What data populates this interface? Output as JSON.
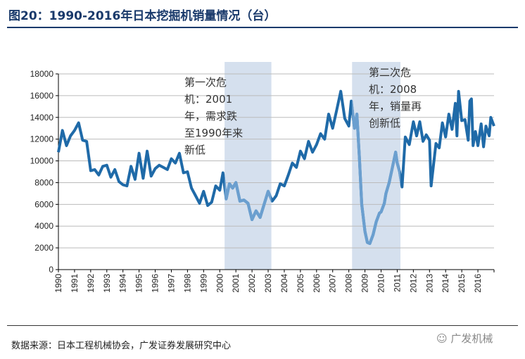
{
  "header": {
    "title": "图20：1990-2016年日本挖掘机销量情况（台）"
  },
  "footer": {
    "source": "数据来源：日本工程机械协会，广发证券发展研究中心",
    "brand": "广发机械",
    "brand_icon": "wechat-icon"
  },
  "chart_data": {
    "type": "line",
    "title": "",
    "xlabel": "",
    "ylabel": "",
    "ylim": [
      0,
      18000
    ],
    "xlim": [
      1990,
      2017
    ],
    "yticks": [
      "0",
      "2000",
      "4000",
      "6000",
      "8000",
      "10000",
      "12000",
      "14000",
      "16000",
      "18000"
    ],
    "xticks": [
      "1990",
      "1991",
      "1992",
      "1993",
      "1994",
      "1995",
      "1996",
      "1997",
      "1998",
      "1999",
      "2000",
      "2001",
      "2002",
      "2003",
      "2004",
      "2005",
      "2006",
      "2007",
      "2008",
      "2009",
      "2010",
      "2011",
      "2012",
      "2013",
      "2014",
      "2015",
      "2016"
    ],
    "grid": "horizontal",
    "legend": "none",
    "colors": {
      "line": "#1f6aa8",
      "line_highlight": "#6b9fcf",
      "shade": "#d5e0ee"
    },
    "shaded_periods": [
      {
        "from": 2000.3,
        "to": 2003.2,
        "label": [
          "第一次危",
          "机：2001",
          "年，需求跌",
          "至1990年来",
          "新低"
        ]
      },
      {
        "from": 2008.2,
        "to": 2011.2,
        "label": [
          "第二次危",
          "机：2008",
          "年，销量再",
          "创新低"
        ]
      }
    ],
    "x": [
      1990,
      1990.25,
      1990.5,
      1990.75,
      1991,
      1991.25,
      1991.5,
      1991.75,
      1992,
      1992.25,
      1992.5,
      1992.75,
      1993,
      1993.25,
      1993.5,
      1993.75,
      1994,
      1994.25,
      1994.5,
      1994.75,
      1995,
      1995.25,
      1995.5,
      1995.75,
      1996,
      1996.25,
      1996.5,
      1996.75,
      1997,
      1997.25,
      1997.5,
      1997.75,
      1998,
      1998.25,
      1998.5,
      1998.75,
      1999,
      1999.25,
      1999.5,
      1999.75,
      2000,
      2000.2,
      2000.4,
      2000.6,
      2000.8,
      2001,
      2001.25,
      2001.5,
      2001.75,
      2002,
      2002.25,
      2002.5,
      2002.75,
      2003,
      2003.25,
      2003.5,
      2003.75,
      2004,
      2004.25,
      2004.5,
      2004.75,
      2005,
      2005.25,
      2005.5,
      2005.75,
      2006,
      2006.25,
      2006.5,
      2006.75,
      2007,
      2007.25,
      2007.5,
      2007.75,
      2008,
      2008.15,
      2008.35,
      2008.5,
      2008.65,
      2008.8,
      2009,
      2009.15,
      2009.3,
      2009.5,
      2009.7,
      2009.9,
      2010,
      2010.2,
      2010.3,
      2010.5,
      2010.7,
      2010.9,
      2011,
      2011.15,
      2011.3,
      2011.5,
      2011.75,
      2012,
      2012.2,
      2012.4,
      2012.6,
      2012.8,
      2013,
      2013.1,
      2013.4,
      2013.6,
      2013.8,
      2014,
      2014.2,
      2014.4,
      2014.6,
      2014.7,
      2014.8,
      2015,
      2015.2,
      2015.4,
      2015.5,
      2015.6,
      2015.7,
      2015.85,
      2016,
      2016.2,
      2016.35,
      2016.5,
      2016.7,
      2016.8,
      2017
    ],
    "y": [
      10800,
      12800,
      11400,
      12300,
      12800,
      13500,
      11900,
      11800,
      9100,
      9200,
      8700,
      9500,
      9600,
      8500,
      9200,
      8100,
      7800,
      7700,
      9500,
      8300,
      10700,
      8400,
      10900,
      8600,
      9300,
      9600,
      9400,
      9200,
      10200,
      9800,
      10700,
      8900,
      9000,
      7500,
      6800,
      6100,
      7200,
      5900,
      6200,
      7700,
      7300,
      8900,
      6500,
      7900,
      7500,
      8000,
      6300,
      6400,
      6100,
      4600,
      5400,
      4800,
      6000,
      7200,
      6300,
      6800,
      7900,
      7700,
      8700,
      9800,
      9400,
      10900,
      10200,
      11800,
      10800,
      11500,
      12500,
      12000,
      14300,
      13000,
      14700,
      16400,
      13900,
      13200,
      15500,
      13000,
      14300,
      10400,
      6000,
      3500,
      2500,
      2400,
      3200,
      4400,
      5200,
      5300,
      6100,
      7000,
      8000,
      9400,
      10800,
      9800,
      9000,
      7600,
      12200,
      11500,
      13600,
      12300,
      13600,
      11800,
      12400,
      11900,
      7700,
      11600,
      11200,
      13500,
      12200,
      14300,
      12900,
      15300,
      12300,
      16400,
      13700,
      13800,
      11900,
      15500,
      15700,
      11400,
      12700,
      11400,
      13400,
      11300,
      13200,
      12300,
      14000,
      13200
    ]
  }
}
